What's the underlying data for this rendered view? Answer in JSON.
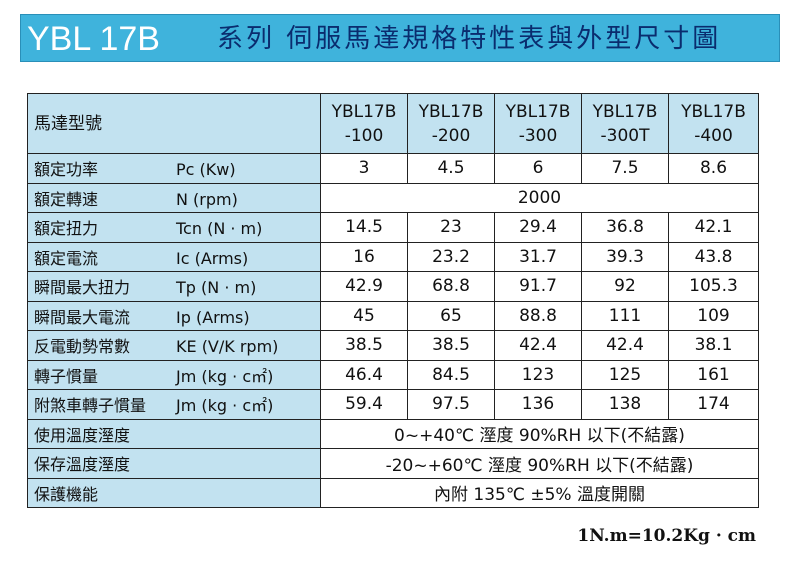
{
  "banner": {
    "model": "YBL 17B",
    "subtitle": "系列 伺服馬達規格特性表與外型尺寸圖",
    "colors": {
      "background": "#3fb3dc",
      "model_text": "#ffffff",
      "subtitle_text": "#0a2c6e"
    }
  },
  "table": {
    "corner_label": "馬達型號",
    "models": [
      {
        "line1": "YBL17B",
        "line2": "-100"
      },
      {
        "line1": "YBL17B",
        "line2": "-200"
      },
      {
        "line1": "YBL17B",
        "line2": "-300"
      },
      {
        "line1": "YBL17B",
        "line2": "-300T"
      },
      {
        "line1": "YBL17B",
        "line2": "-400"
      }
    ],
    "rows": [
      {
        "label": "額定功率",
        "symbol": "Pc (Kw)",
        "values": [
          "3",
          "4.5",
          "6",
          "7.5",
          "8.6"
        ]
      },
      {
        "label": "額定轉速",
        "symbol": "N  (rpm)",
        "merged": "2000"
      },
      {
        "label": "額定扭力",
        "symbol": "Tcn (N · m)",
        "values": [
          "14.5",
          "23",
          "29.4",
          "36.8",
          "42.1"
        ]
      },
      {
        "label": "額定電流",
        "symbol": "Ic  (Arms)",
        "values": [
          "16",
          "23.2",
          "31.7",
          "39.3",
          "43.8"
        ]
      },
      {
        "label": "瞬間最大扭力",
        "symbol": "Tp (N · m)",
        "values": [
          "42.9",
          "68.8",
          "91.7",
          "92",
          "105.3"
        ]
      },
      {
        "label": "瞬間最大電流",
        "symbol": "Ip  (Arms)",
        "values": [
          "45",
          "65",
          "88.8",
          "111",
          "109"
        ]
      },
      {
        "label": "反電動勢常數",
        "symbol": "KE (V/K rpm)",
        "values": [
          "38.5",
          "38.5",
          "42.4",
          "42.4",
          "38.1"
        ]
      },
      {
        "label": "轉子慣量",
        "symbol": "Jm (kg · c㎡)",
        "values": [
          "46.4",
          "84.5",
          "123",
          "125",
          "161"
        ]
      },
      {
        "label": "附煞車轉子慣量",
        "symbol": "Jm (kg · c㎡)",
        "values": [
          "59.4",
          "97.5",
          "136",
          "138",
          "174"
        ]
      },
      {
        "label": "使用溫度溼度",
        "symbol": "",
        "merged": "0~+40℃   溼度 90%RH 以下(不結露)"
      },
      {
        "label": "保存溫度溼度",
        "symbol": "",
        "merged": "-20~+60℃   溼度 90%RH 以下(不結露)"
      },
      {
        "label": "保護機能",
        "symbol": "",
        "merged": "內附 135℃ ±5% 溫度開關"
      }
    ],
    "colors": {
      "header_fill": "#c2e2f0",
      "border": "#222222"
    }
  },
  "footnote": "1N.m=10.2Kg · cm"
}
